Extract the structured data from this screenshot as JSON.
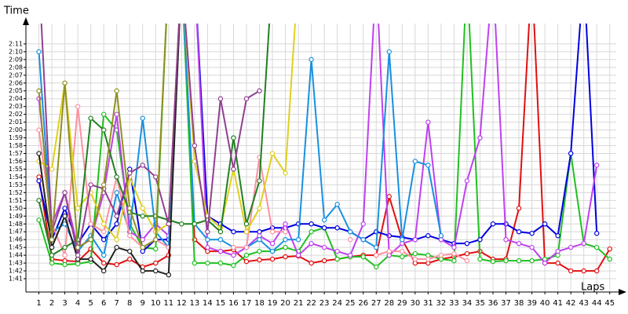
{
  "chart_data": {
    "type": "line",
    "y_label": "Time",
    "x_label": "Laps",
    "x": [
      1,
      2,
      3,
      4,
      5,
      6,
      7,
      8,
      9,
      10,
      11,
      12,
      13,
      14,
      15,
      16,
      17,
      18,
      19,
      20,
      21,
      22,
      23,
      24,
      25,
      26,
      27,
      28,
      29,
      30,
      31,
      32,
      33,
      34,
      35,
      36,
      37,
      38,
      39,
      40,
      41,
      42,
      43,
      44,
      45
    ],
    "xlim": [
      0,
      45.5
    ],
    "xticks": [
      1,
      2,
      3,
      4,
      5,
      6,
      7,
      8,
      9,
      10,
      11,
      12,
      13,
      14,
      15,
      16,
      17,
      18,
      19,
      20,
      21,
      22,
      23,
      24,
      25,
      26,
      27,
      28,
      29,
      30,
      31,
      32,
      33,
      34,
      35,
      36,
      37,
      38,
      39,
      40,
      41,
      42,
      43,
      44,
      45
    ],
    "ylim": [
      99.3,
      133.6
    ],
    "yticks": [
      {
        "value": 101,
        "label": "1:41"
      },
      {
        "value": 102,
        "label": "1:42"
      },
      {
        "value": 103,
        "label": "1:43"
      },
      {
        "value": 104,
        "label": "1:44"
      },
      {
        "value": 105,
        "label": "1:45"
      },
      {
        "value": 106,
        "label": "1:46"
      },
      {
        "value": 107,
        "label": "1:47"
      },
      {
        "value": 108,
        "label": "1:48"
      },
      {
        "value": 109,
        "label": "1:49"
      },
      {
        "value": 110,
        "label": "1:50"
      },
      {
        "value": 111,
        "label": "1:51"
      },
      {
        "value": 112,
        "label": "1:52"
      },
      {
        "value": 113,
        "label": "1:53"
      },
      {
        "value": 114,
        "label": "1:54"
      },
      {
        "value": 115,
        "label": "1:55"
      },
      {
        "value": 116,
        "label": "1:56"
      },
      {
        "value": 117,
        "label": "1:57"
      },
      {
        "value": 118,
        "label": "1:58"
      },
      {
        "value": 119,
        "label": "1:59"
      },
      {
        "value": 120,
        "label": "2:00"
      },
      {
        "value": 121,
        "label": "2:01"
      },
      {
        "value": 122,
        "label": "2:02"
      },
      {
        "value": 123,
        "label": "2:03"
      },
      {
        "value": 124,
        "label": "2:04"
      },
      {
        "value": 125,
        "label": "2:05"
      },
      {
        "value": 126,
        "label": "2:06"
      },
      {
        "value": 127,
        "label": "2:07"
      },
      {
        "value": 128,
        "label": "2:08"
      },
      {
        "value": 129,
        "label": "2:09"
      },
      {
        "value": 130,
        "label": "2:10"
      },
      {
        "value": 131,
        "label": "2:11"
      }
    ],
    "grid": true,
    "series": [
      {
        "color": "#e01010",
        "values": [
          114,
          103.5,
          103.3,
          103.2,
          104.8,
          103,
          102.8,
          103.5,
          102.5,
          103,
          104,
          140,
          106,
          104.5,
          104.5,
          104.7,
          103.2,
          103.4,
          103.5,
          103.8,
          103.9,
          103,
          103.3,
          103.5,
          103.8,
          104,
          104,
          111.5,
          106,
          103,
          103,
          103.5,
          103.8,
          104.2,
          104.5,
          103.5,
          103.5,
          110,
          140,
          103,
          103,
          102,
          102,
          102,
          104.8
        ]
      },
      {
        "color": "#20c020",
        "values": [
          108.5,
          103,
          102.8,
          102.9,
          103.2,
          122,
          120,
          108,
          105,
          104.8,
          140,
          140,
          103,
          103,
          103,
          102.7,
          104,
          104.5,
          104.5,
          105,
          104.5,
          107,
          107.5,
          103.5,
          103.8,
          103.8,
          102.5,
          104,
          103.8,
          104.2,
          104,
          103.5,
          103.3,
          140,
          103.5,
          103.2,
          103.3,
          103.3,
          103.3,
          103.5,
          104,
          117,
          105.5,
          105,
          103.5
        ]
      },
      {
        "color": "#0000e0",
        "values": [
          113.5,
          106,
          110,
          105.5,
          108,
          106,
          108,
          115,
          104.5,
          106,
          106,
          140,
          140,
          109,
          108,
          107,
          107,
          107,
          107.5,
          107.5,
          108,
          108,
          107.5,
          107.5,
          107,
          106,
          107,
          106.5,
          106.3,
          106,
          106.5,
          106,
          105.5,
          105.5,
          106,
          108,
          108,
          107,
          106.8,
          108,
          106.5,
          117,
          140,
          106.8,
          null
        ]
      },
      {
        "color": "#c040f0",
        "values": [
          124,
          108,
          112,
          105,
          106,
          112,
          122,
          107,
          106,
          108,
          106.5,
          140,
          140,
          105,
          104.5,
          104,
          105,
          106.5,
          105.5,
          108,
          104,
          105.5,
          105,
          104.5,
          104,
          108,
          140,
          104,
          105.5,
          106,
          121,
          106,
          105,
          113.5,
          119,
          140,
          106,
          105.5,
          105,
          103,
          104.5,
          105,
          105.5,
          115.5,
          null
        ]
      },
      {
        "color": "#1890e0",
        "values": [
          130,
          107,
          108,
          104.5,
          106.5,
          104,
          112,
          107,
          121.5,
          107,
          105,
          140,
          108,
          106,
          106,
          105,
          105,
          106,
          104.5,
          106,
          106,
          129,
          108.5,
          110.5,
          107,
          106,
          105,
          130,
          106,
          116,
          115.5,
          106.5,
          null,
          null,
          null,
          null,
          null,
          null,
          null,
          null,
          null,
          null,
          null,
          null,
          null
        ]
      },
      {
        "color": "#ff90a0",
        "values": [
          120,
          108,
          104,
          123,
          108,
          107,
          114,
          106.5,
          105,
          106,
          105,
          null,
          null,
          null,
          null,
          105,
          105,
          116.5,
          107,
          107,
          null,
          null,
          null,
          null,
          106,
          null,
          104,
          104.5,
          104.5,
          103.5,
          103.5,
          104,
          104.2,
          103.3,
          null,
          null,
          null,
          null,
          null,
          null,
          null,
          null,
          null,
          null,
          null
        ]
      },
      {
        "color": "#e0d020",
        "values": [
          116,
          115,
          126,
          110,
          112,
          108,
          106,
          114,
          110,
          107,
          108,
          140,
          116,
          109,
          107.5,
          115,
          107,
          110,
          117,
          114.5,
          140,
          null,
          null,
          null,
          null,
          null,
          null,
          null,
          null,
          null,
          null,
          null,
          null,
          null,
          null,
          null,
          null,
          null,
          null,
          null,
          null,
          null,
          null,
          null,
          null
        ]
      },
      {
        "color": "#208020",
        "values": [
          111,
          104,
          105,
          106,
          121.5,
          120,
          114,
          109.5,
          109,
          109,
          108.5,
          108,
          108,
          108.5,
          107,
          119,
          108,
          113.5,
          140,
          null,
          null,
          null,
          null,
          null,
          null,
          null,
          null,
          null,
          null,
          null,
          null,
          null,
          null,
          null,
          null,
          null,
          null,
          null,
          null,
          null,
          null,
          null,
          null,
          null,
          null
        ]
      },
      {
        "color": "#202020",
        "values": [
          117,
          105,
          109,
          103.5,
          103.5,
          102,
          105,
          104.5,
          102,
          102,
          101.5,
          140,
          null,
          null,
          null,
          null,
          null,
          null,
          null,
          null,
          null,
          null,
          null,
          null,
          null,
          null,
          null,
          null,
          null,
          null,
          null,
          null,
          null,
          null,
          null,
          null,
          null,
          null,
          null,
          null,
          null,
          null,
          null,
          null,
          null
        ]
      },
      {
        "color": "#904090",
        "values": [
          140,
          107,
          112,
          104,
          113,
          112.5,
          109,
          114.5,
          115.5,
          114,
          108,
          140,
          118,
          107,
          124,
          115,
          124,
          125,
          null,
          null,
          null,
          null,
          null,
          null,
          null,
          null,
          null,
          null,
          null,
          null,
          null,
          null,
          null,
          null,
          null,
          null,
          null,
          null,
          null,
          null,
          null,
          null,
          null,
          null,
          null
        ]
      },
      {
        "color": "#909020",
        "values": [
          125,
          106,
          126,
          105,
          106,
          113,
          125,
          110,
          105,
          106,
          140,
          null,
          null,
          null,
          null,
          null,
          null,
          null,
          null,
          null,
          null,
          null,
          null,
          null,
          null,
          null,
          null,
          null,
          null,
          null,
          null,
          null,
          null,
          null,
          null,
          null,
          null,
          null,
          null,
          null,
          null,
          null,
          null,
          null,
          null
        ]
      }
    ]
  }
}
